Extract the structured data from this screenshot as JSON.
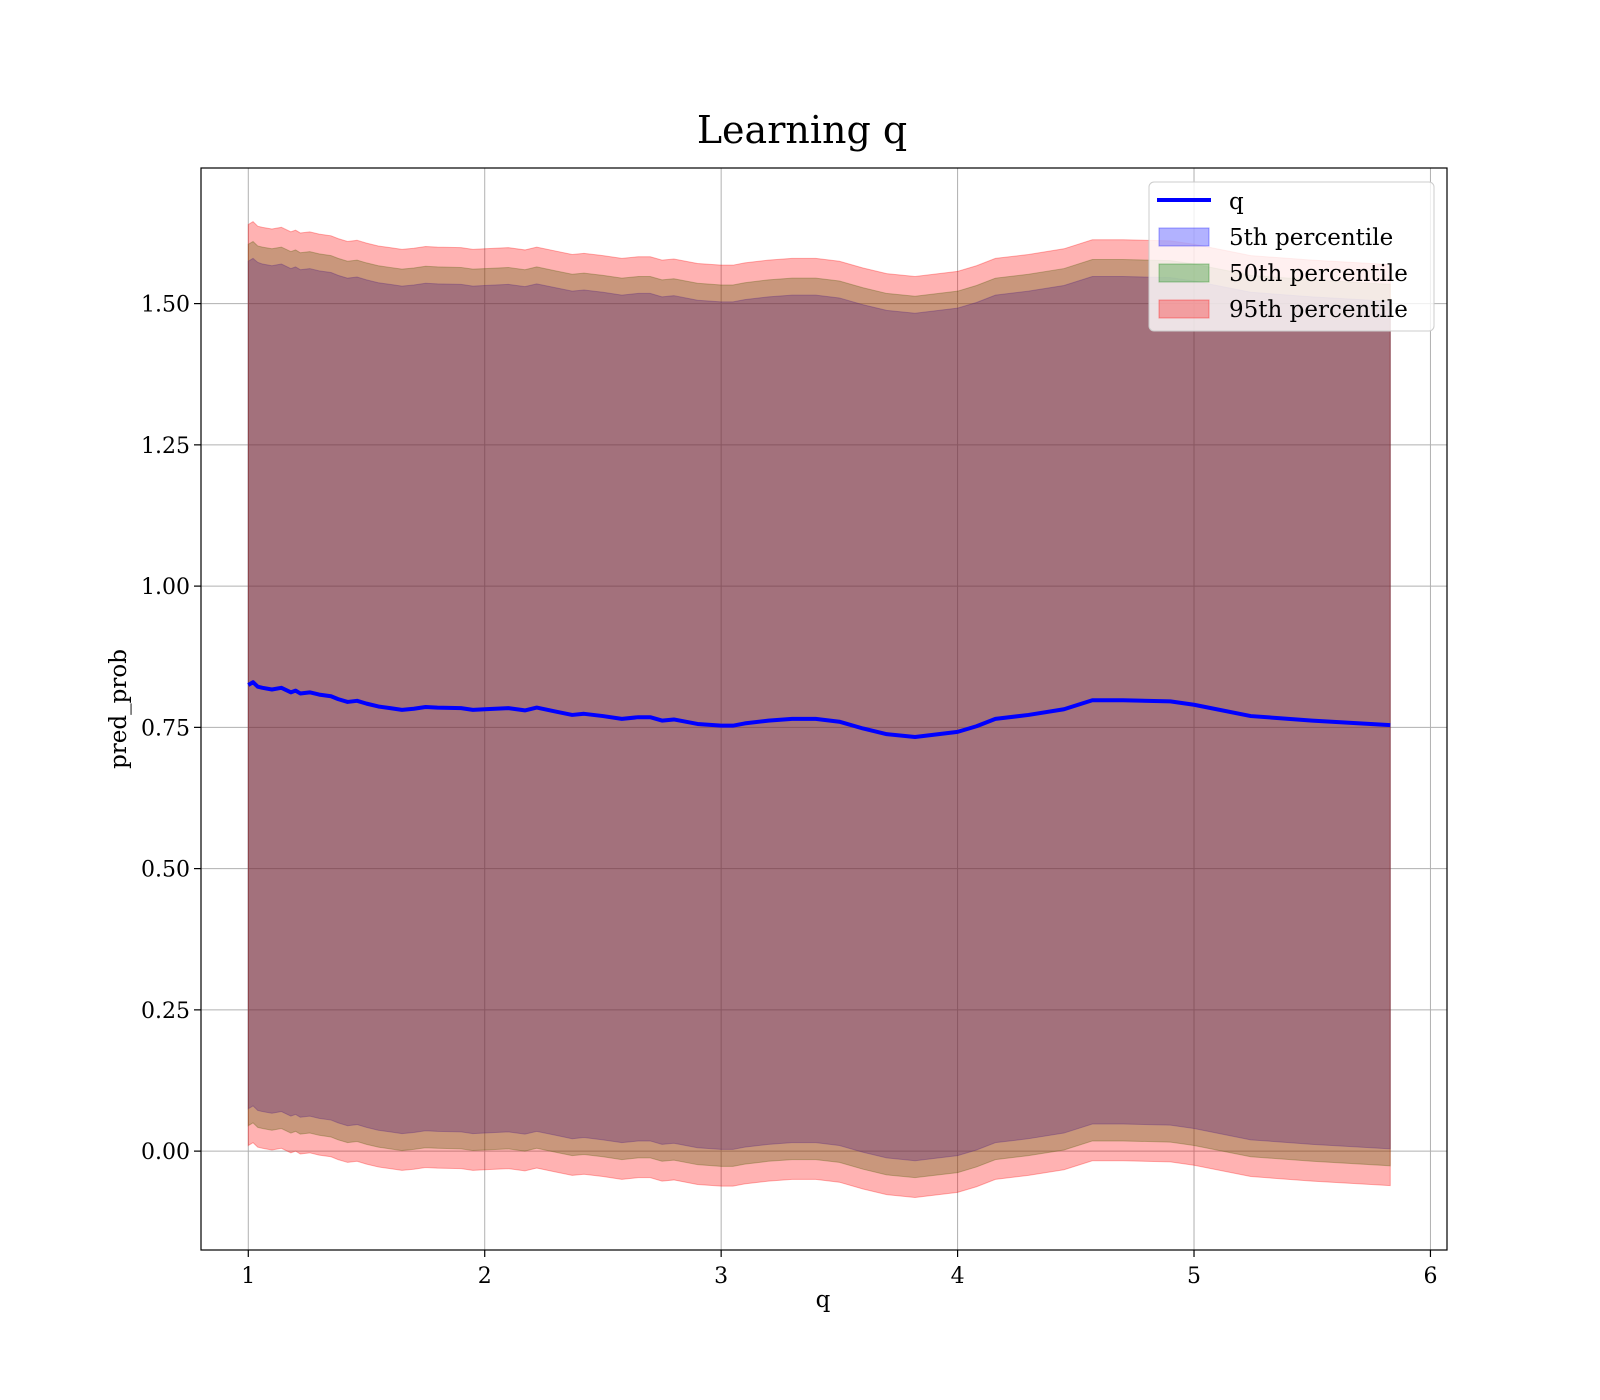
{
  "chart_data": {
    "type": "area",
    "title": "Learning q",
    "xlabel": "q",
    "ylabel": "pred_prob",
    "xlim": [
      0.8,
      6.07
    ],
    "ylim": [
      -0.175,
      1.74
    ],
    "xticks": [
      1,
      2,
      3,
      4,
      5,
      6
    ],
    "xtick_labels": [
      "1",
      "2",
      "3",
      "4",
      "5",
      "6"
    ],
    "yticks": [
      0.0,
      0.25,
      0.5,
      0.75,
      1.0,
      1.25,
      1.5
    ],
    "ytick_labels": [
      "0.00",
      "0.25",
      "0.50",
      "0.75",
      "1.00",
      "1.25",
      "1.50"
    ],
    "grid": true,
    "legend_position": "top-right",
    "x": [
      1.0,
      1.02,
      1.04,
      1.06,
      1.1,
      1.14,
      1.18,
      1.2,
      1.22,
      1.26,
      1.3,
      1.35,
      1.38,
      1.42,
      1.46,
      1.5,
      1.55,
      1.6,
      1.65,
      1.7,
      1.75,
      1.8,
      1.9,
      1.95,
      2.0,
      2.1,
      2.17,
      2.22,
      2.3,
      2.37,
      2.42,
      2.5,
      2.58,
      2.65,
      2.7,
      2.75,
      2.8,
      2.9,
      3.0,
      3.05,
      3.1,
      3.2,
      3.3,
      3.4,
      3.5,
      3.6,
      3.7,
      3.82,
      4.0,
      4.08,
      4.16,
      4.3,
      4.45,
      4.57,
      4.7,
      4.9,
      5.0,
      5.24,
      5.5,
      5.83
    ],
    "series": [
      {
        "name": "q",
        "type": "line",
        "color": "#0000ff",
        "values": [
          0.825,
          0.83,
          0.822,
          0.82,
          0.817,
          0.82,
          0.812,
          0.815,
          0.81,
          0.812,
          0.808,
          0.805,
          0.8,
          0.795,
          0.797,
          0.792,
          0.787,
          0.784,
          0.781,
          0.783,
          0.786,
          0.785,
          0.784,
          0.781,
          0.782,
          0.784,
          0.78,
          0.785,
          0.778,
          0.772,
          0.774,
          0.77,
          0.765,
          0.768,
          0.768,
          0.762,
          0.764,
          0.756,
          0.753,
          0.753,
          0.757,
          0.762,
          0.765,
          0.765,
          0.76,
          0.748,
          0.738,
          0.733,
          0.742,
          0.752,
          0.765,
          0.772,
          0.782,
          0.798,
          0.798,
          0.796,
          0.79,
          0.77,
          0.762,
          0.754
        ]
      },
      {
        "name": "5th percentile",
        "type": "band",
        "color": "#0000ff",
        "upper": [
          1.575,
          1.58,
          1.573,
          1.57,
          1.567,
          1.57,
          1.562,
          1.565,
          1.56,
          1.562,
          1.558,
          1.555,
          1.55,
          1.545,
          1.547,
          1.542,
          1.537,
          1.534,
          1.531,
          1.533,
          1.536,
          1.535,
          1.534,
          1.531,
          1.532,
          1.534,
          1.53,
          1.535,
          1.528,
          1.522,
          1.524,
          1.52,
          1.515,
          1.518,
          1.518,
          1.512,
          1.514,
          1.506,
          1.503,
          1.503,
          1.507,
          1.512,
          1.515,
          1.515,
          1.51,
          1.498,
          1.488,
          1.483,
          1.492,
          1.502,
          1.515,
          1.522,
          1.532,
          1.548,
          1.548,
          1.546,
          1.54,
          1.52,
          1.512,
          1.504
        ],
        "lower": [
          0.075,
          0.08,
          0.072,
          0.07,
          0.067,
          0.07,
          0.062,
          0.065,
          0.06,
          0.062,
          0.058,
          0.055,
          0.05,
          0.045,
          0.047,
          0.042,
          0.037,
          0.034,
          0.031,
          0.033,
          0.036,
          0.035,
          0.034,
          0.031,
          0.032,
          0.034,
          0.03,
          0.035,
          0.028,
          0.022,
          0.024,
          0.02,
          0.015,
          0.018,
          0.018,
          0.012,
          0.014,
          0.006,
          0.003,
          0.003,
          0.007,
          0.012,
          0.015,
          0.015,
          0.01,
          -0.002,
          -0.012,
          -0.017,
          -0.008,
          0.002,
          0.015,
          0.022,
          0.032,
          0.048,
          0.048,
          0.046,
          0.04,
          0.02,
          0.012,
          0.004
        ]
      },
      {
        "name": "50th percentile",
        "type": "band",
        "color": "#008000",
        "upper": [
          1.605,
          1.61,
          1.602,
          1.6,
          1.597,
          1.6,
          1.592,
          1.595,
          1.59,
          1.592,
          1.588,
          1.585,
          1.58,
          1.575,
          1.577,
          1.572,
          1.567,
          1.564,
          1.561,
          1.563,
          1.566,
          1.565,
          1.564,
          1.561,
          1.562,
          1.564,
          1.56,
          1.565,
          1.558,
          1.552,
          1.554,
          1.55,
          1.545,
          1.548,
          1.548,
          1.542,
          1.544,
          1.536,
          1.533,
          1.533,
          1.537,
          1.542,
          1.545,
          1.545,
          1.54,
          1.528,
          1.518,
          1.513,
          1.522,
          1.532,
          1.545,
          1.552,
          1.562,
          1.578,
          1.578,
          1.576,
          1.57,
          1.55,
          1.542,
          1.534
        ],
        "lower": [
          0.045,
          0.05,
          0.042,
          0.04,
          0.037,
          0.04,
          0.032,
          0.035,
          0.03,
          0.032,
          0.028,
          0.025,
          0.02,
          0.015,
          0.017,
          0.012,
          0.007,
          0.004,
          0.001,
          0.003,
          0.006,
          0.005,
          0.004,
          0.001,
          0.002,
          0.004,
          0.0,
          0.005,
          -0.002,
          -0.008,
          -0.006,
          -0.01,
          -0.015,
          -0.012,
          -0.012,
          -0.018,
          -0.016,
          -0.024,
          -0.027,
          -0.027,
          -0.023,
          -0.018,
          -0.015,
          -0.015,
          -0.02,
          -0.032,
          -0.042,
          -0.047,
          -0.038,
          -0.028,
          -0.015,
          -0.008,
          0.002,
          0.018,
          0.018,
          0.016,
          0.01,
          -0.01,
          -0.018,
          -0.026
        ]
      },
      {
        "name": "95th percentile",
        "type": "band",
        "color": "#ff0000",
        "upper": [
          1.64,
          1.645,
          1.637,
          1.635,
          1.632,
          1.635,
          1.627,
          1.63,
          1.625,
          1.627,
          1.623,
          1.62,
          1.615,
          1.61,
          1.612,
          1.607,
          1.602,
          1.599,
          1.596,
          1.598,
          1.601,
          1.6,
          1.599,
          1.596,
          1.597,
          1.599,
          1.595,
          1.6,
          1.593,
          1.587,
          1.589,
          1.585,
          1.58,
          1.583,
          1.583,
          1.577,
          1.579,
          1.571,
          1.568,
          1.568,
          1.572,
          1.577,
          1.58,
          1.58,
          1.575,
          1.563,
          1.553,
          1.548,
          1.557,
          1.567,
          1.58,
          1.587,
          1.597,
          1.613,
          1.613,
          1.611,
          1.605,
          1.585,
          1.577,
          1.569
        ],
        "lower": [
          0.01,
          0.015,
          0.007,
          0.005,
          0.002,
          0.005,
          -0.003,
          0.0,
          -0.005,
          -0.003,
          -0.007,
          -0.01,
          -0.015,
          -0.02,
          -0.018,
          -0.023,
          -0.028,
          -0.031,
          -0.034,
          -0.032,
          -0.029,
          -0.03,
          -0.031,
          -0.034,
          -0.033,
          -0.031,
          -0.035,
          -0.03,
          -0.037,
          -0.043,
          -0.041,
          -0.045,
          -0.05,
          -0.047,
          -0.047,
          -0.053,
          -0.051,
          -0.059,
          -0.062,
          -0.062,
          -0.058,
          -0.053,
          -0.05,
          -0.05,
          -0.055,
          -0.067,
          -0.077,
          -0.082,
          -0.073,
          -0.063,
          -0.05,
          -0.043,
          -0.033,
          -0.017,
          -0.017,
          -0.019,
          -0.025,
          -0.045,
          -0.053,
          -0.061
        ]
      }
    ]
  }
}
